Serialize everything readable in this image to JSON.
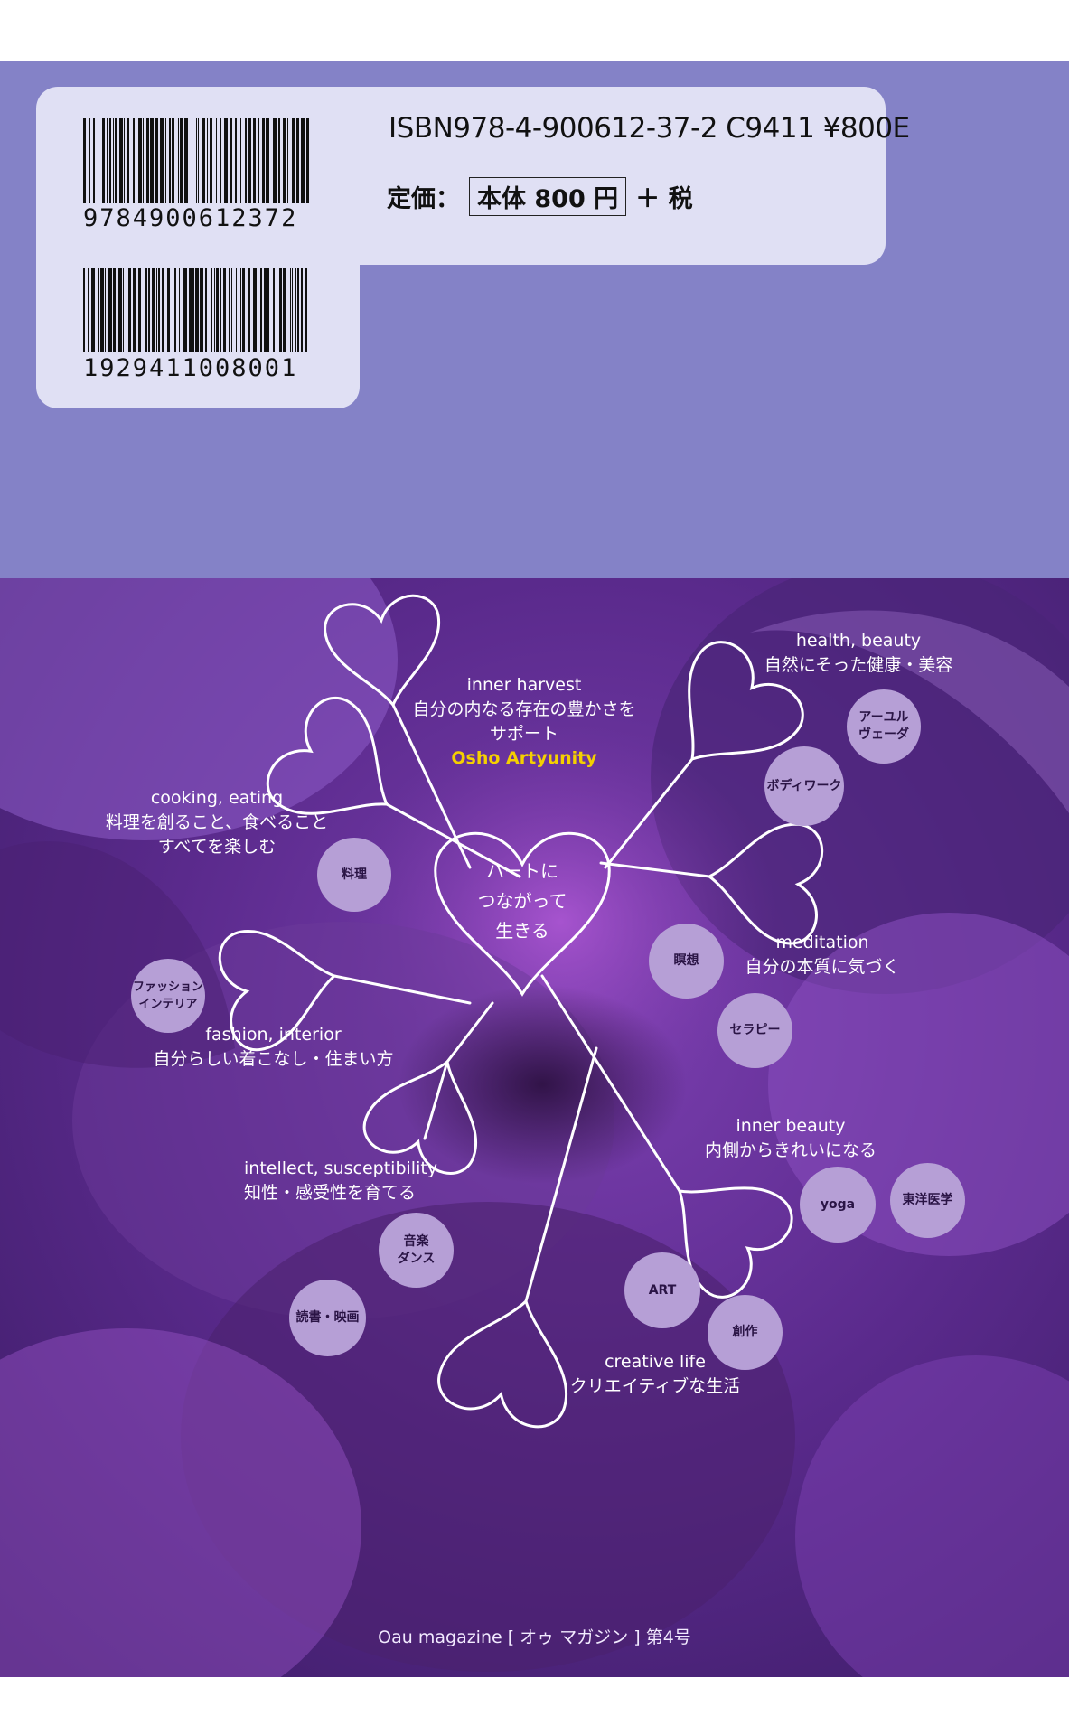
{
  "cover": {
    "barcode_1_number": "9784900612372",
    "barcode_2_number": "1929411008001",
    "isbn": "ISBN978-4-900612-37-2  C9411 ¥800E",
    "price_label": "定価：",
    "price_boxed": "本体 800 円",
    "price_tax": "＋ 税"
  },
  "diagram": {
    "center": [
      "ハートに",
      "つながって",
      "生きる"
    ],
    "branches": {
      "inner_harvest": {
        "en": "inner harvest",
        "jp1": "自分の内なる存在の豊かさを",
        "jp2": "サポート",
        "accent": "Osho Artyunity"
      },
      "health": {
        "en": "health, beauty",
        "jp": "自然にそった健康・美容"
      },
      "cooking": {
        "en": "cooking, eating",
        "jp1": "料理を創ること、食べること",
        "jp2": "すべてを楽しむ"
      },
      "meditation": {
        "en": "meditation",
        "jp": "自分の本質に気づく"
      },
      "fashion": {
        "en": "fashion,  interior",
        "jp": "自分らしい着こなし・住まい方"
      },
      "inner_beauty": {
        "en": "inner beauty",
        "jp": "内側からきれいになる"
      },
      "intellect": {
        "en": "intellect, susceptibility",
        "jp": "知性・感受性を育てる"
      },
      "creative": {
        "en": "creative life",
        "jp": "クリエイティブな生活"
      }
    },
    "tags": {
      "ayurveda": "アーユル\nヴェーダ",
      "bodywork": "ボディワーク",
      "cooking": "料理",
      "meisou": "瞑想",
      "fashion": "ファッション\nインテリア",
      "therapy": "セラピー",
      "yoga": "yoga",
      "east_med": "東洋医学",
      "music": "音楽\nダンス",
      "reading": "読書・映画",
      "art": "ART",
      "sousaku": "創作"
    }
  },
  "footer": "Oau magazine [ オゥ マガジン ]  第4号",
  "colors": {
    "band": "#8482c7",
    "panel": "#e0e0f4",
    "tag": "#b69fd6",
    "accent": "#f5d000"
  }
}
